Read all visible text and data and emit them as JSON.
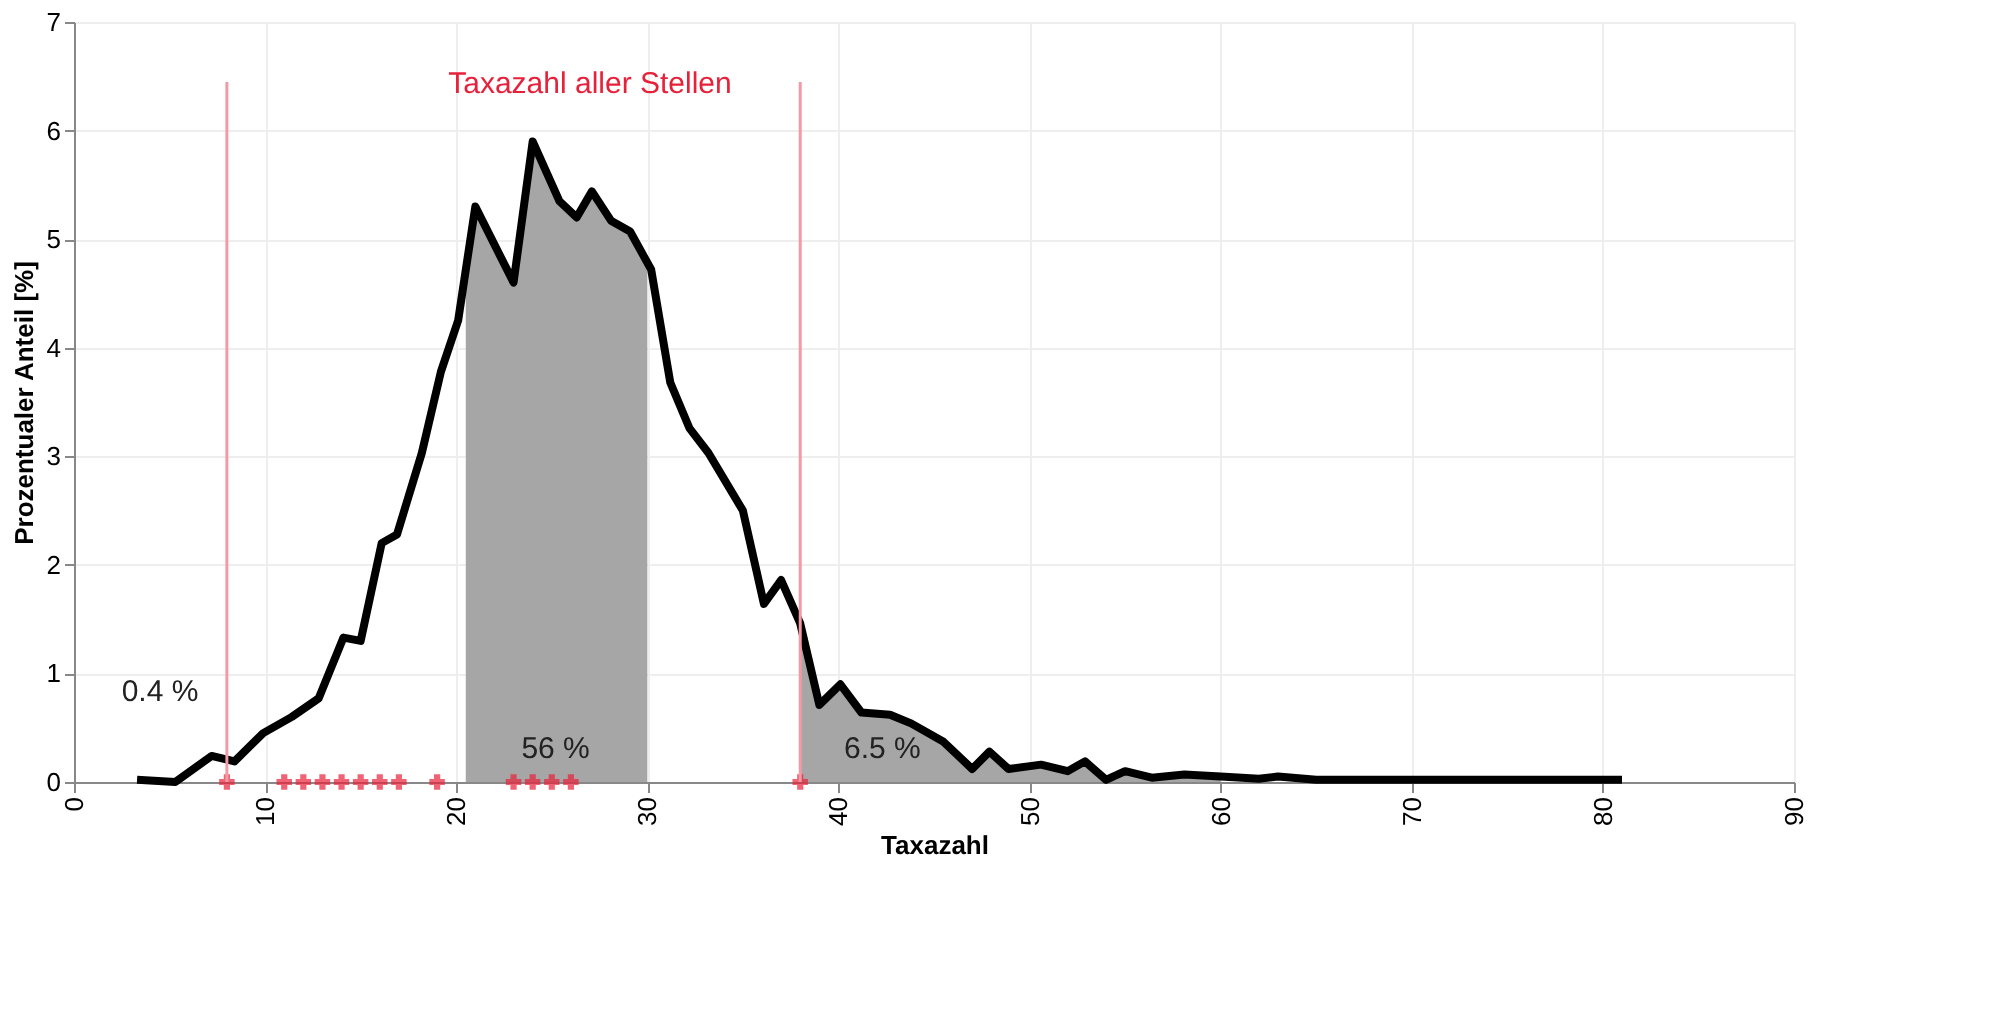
{
  "chart_data": {
    "type": "line",
    "xlabel": "Taxazahl",
    "ylabel": "Prozentualer Anteil [%]",
    "xlim": [
      0,
      90
    ],
    "xticks": [
      0,
      10,
      20,
      30,
      40,
      50,
      60,
      70,
      80,
      90
    ],
    "ylim": [
      0,
      7
    ],
    "yticks": [
      0,
      1,
      2,
      3,
      4,
      5,
      6,
      7
    ],
    "grid": true,
    "series": [
      {
        "type": "area",
        "color": "#a6a6a6",
        "x": [
          20.5,
          21,
          23,
          24,
          25.4,
          26.3,
          27.1,
          28.1,
          29.1,
          30
        ],
        "values": [
          4.5,
          5.3,
          4.6,
          5.9,
          5.35,
          5.2,
          5.44,
          5.17,
          5.07,
          4.75
        ]
      },
      {
        "type": "area",
        "color": "#a6a6a6",
        "x": [
          38,
          39,
          40.1,
          41.2,
          42.7,
          43.8,
          45.5,
          47,
          47.9,
          48.9,
          50.6,
          52,
          52.9,
          54,
          55,
          56.4,
          58.1,
          60
        ],
        "values": [
          1.46,
          0.71,
          0.9,
          0.64,
          0.62,
          0.54,
          0.37,
          0.12,
          0.28,
          0.12,
          0.16,
          0.1,
          0.19,
          0.02,
          0.1,
          0.04,
          0.07,
          0.05
        ]
      },
      {
        "color": "#000000",
        "x": [
          3.3,
          5.3,
          7.2,
          8.4,
          9.9,
          11.4,
          12.8,
          14.1,
          15,
          16.1,
          16.9,
          18.2,
          19.2,
          20.1,
          21,
          23,
          24,
          25.4,
          26.3,
          27.1,
          28.1,
          29.1,
          30.2,
          31.2,
          32.2,
          33.2,
          35,
          36.1,
          37,
          38,
          39,
          40.1,
          41.2,
          42.7,
          43.8,
          45.5,
          47,
          47.9,
          48.9,
          50.6,
          52,
          52.9,
          54,
          55,
          56.4,
          58.1,
          60,
          62,
          63,
          65,
          70,
          75,
          81
        ],
        "values": [
          0.02,
          0,
          0.24,
          0.19,
          0.45,
          0.6,
          0.77,
          1.33,
          1.3,
          2.2,
          2.28,
          3.03,
          3.78,
          4.25,
          5.3,
          4.6,
          5.9,
          5.35,
          5.2,
          5.44,
          5.17,
          5.07,
          4.72,
          3.68,
          3.26,
          3.03,
          2.5,
          1.64,
          1.86,
          1.46,
          0.71,
          0.9,
          0.64,
          0.62,
          0.54,
          0.37,
          0.12,
          0.28,
          0.12,
          0.16,
          0.1,
          0.19,
          0.02,
          0.1,
          0.04,
          0.07,
          0.05,
          0.03,
          0.05,
          0.02,
          0.02,
          0.02,
          0.02
        ]
      },
      {
        "type": "scatter",
        "color": "#e8213a",
        "marker": "cross",
        "x": [
          8,
          11,
          12,
          13,
          14,
          15,
          16,
          17,
          19,
          23,
          24,
          25,
          26,
          38
        ],
        "values": [
          0,
          0,
          0,
          0,
          0,
          0,
          0,
          0,
          0,
          0,
          0,
          0,
          0,
          0
        ]
      }
    ],
    "ref_lines": [
      {
        "axis": "x",
        "value": 8,
        "color": "#f29aa6"
      },
      {
        "axis": "x",
        "value": 38,
        "color": "#f29aa6"
      }
    ],
    "annotations": [
      "Taxazahl aller Stellen",
      "0.4 %",
      "56 %",
      "6.5 %"
    ]
  }
}
